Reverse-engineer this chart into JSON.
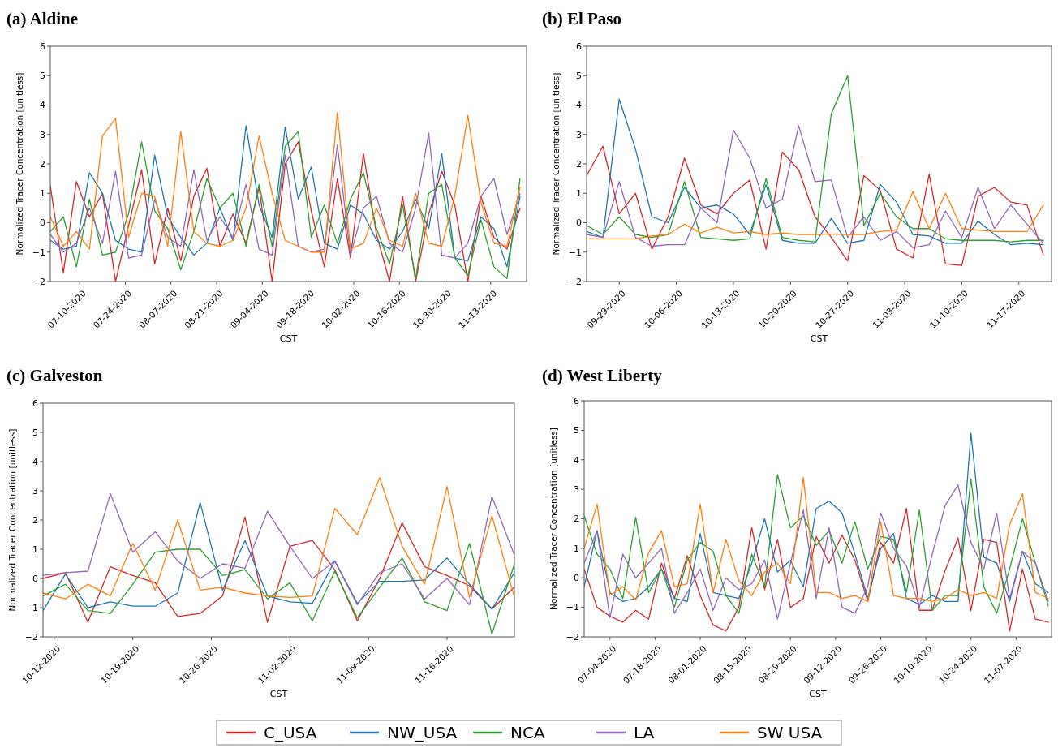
{
  "chart_data": [
    {
      "type": "line",
      "title": "(a) Aldine",
      "xlabel": "CST",
      "ylabel": "Normalized Tracer Concentration [unitless]",
      "x": [
        "2020-07-01",
        "2020-07-05",
        "2020-07-09",
        "2020-07-13",
        "2020-07-17",
        "2020-07-21",
        "2020-07-25",
        "2020-07-29",
        "2020-08-02",
        "2020-08-06",
        "2020-08-10",
        "2020-08-14",
        "2020-08-18",
        "2020-08-22",
        "2020-08-26",
        "2020-08-30",
        "2020-09-03",
        "2020-09-07",
        "2020-09-11",
        "2020-09-15",
        "2020-09-19",
        "2020-09-23",
        "2020-09-27",
        "2020-10-01",
        "2020-10-05",
        "2020-10-09",
        "2020-10-13",
        "2020-10-17",
        "2020-10-21",
        "2020-10-25",
        "2020-10-29",
        "2020-11-02",
        "2020-11-06",
        "2020-11-10",
        "2020-11-14",
        "2020-11-18",
        "2020-11-22"
      ],
      "xlim": [
        "2020-07-01",
        "2020-11-24"
      ],
      "xticks": [
        {
          "value": "2020-07-10",
          "label": "07-10-2020"
        },
        {
          "value": "2020-07-24",
          "label": "07-24-2020"
        },
        {
          "value": "2020-08-07",
          "label": "08-07-2020"
        },
        {
          "value": "2020-08-21",
          "label": "08-21-2020"
        },
        {
          "value": "2020-09-04",
          "label": "09-04-2020"
        },
        {
          "value": "2020-09-18",
          "label": "09-18-2020"
        },
        {
          "value": "2020-10-02",
          "label": "10-02-2020"
        },
        {
          "value": "2020-10-16",
          "label": "10-16-2020"
        },
        {
          "value": "2020-10-30",
          "label": "10-30-2020"
        },
        {
          "value": "2020-11-13",
          "label": "11-13-2020"
        }
      ],
      "ylim": [
        -2,
        6
      ],
      "yticks": [
        -2,
        -1,
        0,
        1,
        2,
        3,
        4,
        5,
        6
      ],
      "series": [
        {
          "color": "#d62728",
          "values": [
            1.25,
            -1.7,
            1.4,
            0.2,
            1.0,
            -2.0,
            -0.1,
            1.8,
            -1.4,
            0.5,
            -1.3,
            0.9,
            1.85,
            -0.8,
            0.3,
            -0.7,
            1.2,
            -2.0,
            2.0,
            2.75,
            0.4,
            -1.5,
            1.5,
            -1.2,
            2.35,
            -0.4,
            -2.0,
            0.9,
            -2.0,
            0.3,
            1.75,
            0.6,
            -2.0,
            0.9,
            -0.5,
            -0.9,
            0.5
          ]
        },
        {
          "color": "#1f77b4",
          "values": [
            -0.6,
            -0.9,
            -0.8,
            1.7,
            1.0,
            -0.6,
            -0.9,
            -1.0,
            2.3,
            0.2,
            -0.5,
            -1.1,
            -0.7,
            0.5,
            -0.6,
            3.3,
            0.6,
            -0.5,
            3.25,
            0.8,
            1.9,
            -0.7,
            -0.9,
            0.6,
            0.3,
            -0.6,
            -0.9,
            -0.3,
            0.8,
            -0.2,
            2.35,
            -1.2,
            -1.3,
            0.2,
            -0.2,
            -1.5,
            0.9
          ]
        },
        {
          "color": "#2ca02c",
          "values": [
            -0.3,
            0.2,
            -1.5,
            0.8,
            -1.1,
            -1.0,
            0.3,
            2.75,
            0.4,
            -0.2,
            -1.6,
            -0.3,
            1.5,
            0.5,
            1.0,
            -0.8,
            1.3,
            -0.8,
            2.6,
            3.1,
            -0.5,
            0.6,
            -0.7,
            0.8,
            1.7,
            -0.2,
            -1.4,
            0.6,
            -1.9,
            1.0,
            1.3,
            -1.2,
            -1.8,
            0.1,
            -1.5,
            -1.9,
            1.5
          ]
        },
        {
          "color": "#9467bd",
          "values": [
            -0.4,
            -1.0,
            -0.7,
            0.5,
            -0.7,
            1.75,
            -1.2,
            -1.1,
            0.8,
            -0.5,
            -0.8,
            1.8,
            -0.6,
            0.2,
            -0.5,
            1.3,
            -0.9,
            -1.1,
            2.3,
            -0.8,
            -1.0,
            -0.9,
            2.65,
            -1.1,
            0.5,
            0.9,
            -0.7,
            -1.0,
            0.5,
            3.05,
            -1.1,
            -1.2,
            -0.7,
            0.9,
            1.5,
            -0.4,
            1.0
          ]
        },
        {
          "color": "#ff7f0e",
          "values": [
            0.2,
            -0.8,
            -0.3,
            -0.9,
            2.95,
            3.55,
            -0.5,
            1.0,
            0.9,
            -0.8,
            3.1,
            -0.3,
            -0.7,
            -0.8,
            -0.6,
            0.5,
            2.95,
            1.0,
            -0.6,
            -0.8,
            -1.0,
            -1.0,
            3.75,
            -0.9,
            -0.7,
            0.5,
            -0.6,
            -0.8,
            1.0,
            -0.7,
            -0.8,
            0.9,
            3.65,
            0.7,
            -0.7,
            -0.8,
            1.2
          ]
        }
      ]
    },
    {
      "type": "line",
      "title": "(b) El Paso",
      "xlabel": "CST",
      "ylabel": "Normalized Tracer Concentration [unitless]",
      "x": [
        "2020-09-25",
        "2020-09-27",
        "2020-09-29",
        "2020-10-01",
        "2020-10-03",
        "2020-10-05",
        "2020-10-07",
        "2020-10-09",
        "2020-10-11",
        "2020-10-13",
        "2020-10-15",
        "2020-10-17",
        "2020-10-19",
        "2020-10-21",
        "2020-10-23",
        "2020-10-25",
        "2020-10-27",
        "2020-10-29",
        "2020-10-31",
        "2020-11-02",
        "2020-11-04",
        "2020-11-06",
        "2020-11-08",
        "2020-11-10",
        "2020-11-12",
        "2020-11-14",
        "2020-11-16",
        "2020-11-18",
        "2020-11-20"
      ],
      "xlim": [
        "2020-09-25",
        "2020-11-21"
      ],
      "xticks": [
        {
          "value": "2020-09-29",
          "label": "09-29-2020"
        },
        {
          "value": "2020-10-06",
          "label": "10-06-2020"
        },
        {
          "value": "2020-10-13",
          "label": "10-13-2020"
        },
        {
          "value": "2020-10-20",
          "label": "10-20-2020"
        },
        {
          "value": "2020-10-27",
          "label": "10-27-2020"
        },
        {
          "value": "2020-11-03",
          "label": "11-03-2020"
        },
        {
          "value": "2020-11-10",
          "label": "11-10-2020"
        },
        {
          "value": "2020-11-17",
          "label": "11-17-2020"
        }
      ],
      "ylim": [
        -2,
        6
      ],
      "yticks": [
        -2,
        -1,
        0,
        1,
        2,
        3,
        4,
        5,
        6
      ],
      "series": [
        {
          "color": "#d62728",
          "values": [
            1.6,
            2.6,
            0.3,
            1.0,
            -0.9,
            0.2,
            2.2,
            0.6,
            0.3,
            1.0,
            1.45,
            -0.9,
            2.4,
            1.8,
            0.2,
            -0.5,
            -1.3,
            1.6,
            1.1,
            -0.9,
            -1.2,
            1.65,
            -1.4,
            -1.45,
            0.9,
            1.2,
            0.7,
            0.6,
            -1.1
          ]
        },
        {
          "color": "#1f77b4",
          "values": [
            -0.3,
            -0.5,
            4.2,
            2.5,
            0.2,
            0.0,
            1.2,
            0.5,
            0.6,
            0.3,
            -0.4,
            1.3,
            -0.6,
            -0.7,
            -0.7,
            0.15,
            -0.7,
            -0.6,
            1.3,
            0.7,
            -0.4,
            -0.45,
            -0.7,
            -0.7,
            0.05,
            -0.4,
            -0.75,
            -0.7,
            -0.75
          ]
        },
        {
          "color": "#2ca02c",
          "values": [
            -0.1,
            -0.4,
            0.2,
            -0.4,
            -0.5,
            -0.4,
            1.4,
            -0.5,
            -0.55,
            -0.6,
            -0.55,
            1.5,
            -0.5,
            -0.6,
            -0.65,
            3.7,
            5.0,
            -0.1,
            1.0,
            0.2,
            -0.2,
            -0.2,
            -0.55,
            -0.6,
            -0.6,
            -0.6,
            -0.65,
            -0.6,
            -0.6
          ]
        },
        {
          "color": "#9467bd",
          "values": [
            -0.4,
            -0.5,
            1.4,
            -0.5,
            -0.8,
            -0.75,
            -0.75,
            0.5,
            0.0,
            3.15,
            2.2,
            0.5,
            0.8,
            3.3,
            1.4,
            1.45,
            -0.5,
            0.2,
            -0.6,
            -0.3,
            -0.85,
            -0.75,
            0.4,
            -0.5,
            1.2,
            -0.2,
            0.6,
            -0.05,
            -0.7
          ]
        },
        {
          "color": "#ff7f0e",
          "values": [
            -0.55,
            -0.55,
            -0.55,
            -0.55,
            -0.45,
            -0.4,
            -0.05,
            -0.35,
            -0.15,
            -0.35,
            -0.3,
            -0.4,
            -0.35,
            -0.4,
            -0.4,
            -0.38,
            -0.4,
            -0.4,
            -0.3,
            -0.25,
            1.05,
            -0.2,
            1.0,
            -0.2,
            -0.25,
            -0.3,
            -0.3,
            -0.3,
            0.6
          ]
        }
      ]
    },
    {
      "type": "line",
      "title": "(c) Galveston",
      "xlabel": "CST",
      "ylabel": "Normalized Tracer Concentration [unitless]",
      "x": [
        "2020-10-11",
        "2020-10-13",
        "2020-10-15",
        "2020-10-17",
        "2020-10-19",
        "2020-10-21",
        "2020-10-23",
        "2020-10-25",
        "2020-10-27",
        "2020-10-29",
        "2020-10-31",
        "2020-11-02",
        "2020-11-04",
        "2020-11-06",
        "2020-11-08",
        "2020-11-10",
        "2020-11-12",
        "2020-11-14",
        "2020-11-16",
        "2020-11-18",
        "2020-11-20",
        "2020-11-22"
      ],
      "xlim": [
        "2020-10-11",
        "2020-11-22"
      ],
      "xticks": [
        {
          "value": "2020-10-12",
          "label": "10-12-2020"
        },
        {
          "value": "2020-10-19",
          "label": "10-19-2020"
        },
        {
          "value": "2020-10-26",
          "label": "10-26-2020"
        },
        {
          "value": "2020-11-02",
          "label": "11-02-2020"
        },
        {
          "value": "2020-11-09",
          "label": "11-09-2020"
        },
        {
          "value": "2020-11-16",
          "label": "11-16-2020"
        }
      ],
      "ylim": [
        -2,
        6
      ],
      "yticks": [
        -2,
        -1,
        0,
        1,
        2,
        3,
        4,
        5,
        6
      ],
      "series": [
        {
          "color": "#d62728",
          "values": [
            0.0,
            0.2,
            -1.5,
            0.4,
            0.1,
            -0.15,
            -1.3,
            -1.2,
            -0.6,
            2.1,
            -1.5,
            1.1,
            1.3,
            0.3,
            -1.45,
            0.0,
            1.9,
            0.4,
            0.1,
            -0.25,
            -1.05,
            -0.3
          ]
        },
        {
          "color": "#1f77b4",
          "values": [
            -1.1,
            0.15,
            -1.0,
            -0.8,
            -0.95,
            -0.95,
            -0.5,
            2.6,
            -0.4,
            1.3,
            -0.6,
            -0.8,
            -0.85,
            0.6,
            -0.85,
            -0.1,
            -0.1,
            -0.05,
            0.7,
            -0.2,
            -1.05,
            0.2
          ]
        },
        {
          "color": "#2ca02c",
          "values": [
            -0.6,
            -0.2,
            -1.1,
            -1.2,
            -0.2,
            0.9,
            1.0,
            1.0,
            0.1,
            0.3,
            -0.7,
            -0.15,
            -1.45,
            0.25,
            -1.35,
            -0.3,
            0.7,
            -0.8,
            -1.1,
            1.2,
            -1.9,
            0.5
          ]
        },
        {
          "color": "#9467bd",
          "values": [
            0.1,
            0.2,
            0.25,
            2.9,
            0.9,
            1.6,
            0.6,
            0.0,
            0.5,
            0.35,
            2.3,
            1.1,
            0.0,
            0.6,
            -0.9,
            0.2,
            0.5,
            -0.7,
            0.0,
            -0.9,
            2.8,
            0.8
          ]
        },
        {
          "color": "#ff7f0e",
          "values": [
            -0.5,
            -0.7,
            -0.2,
            -0.6,
            1.2,
            -0.4,
            2.0,
            -0.4,
            -0.3,
            -0.5,
            -0.6,
            -0.65,
            -0.6,
            2.4,
            1.5,
            3.45,
            1.1,
            -0.2,
            3.15,
            -0.65,
            2.15,
            -0.65
          ]
        }
      ]
    },
    {
      "type": "line",
      "title": "(d) West Liberty",
      "xlabel": "CST",
      "ylabel": "Normalized Tracer Concentration [unitless]",
      "legend": "bottom",
      "x": [
        "2020-06-26",
        "2020-06-30",
        "2020-07-04",
        "2020-07-08",
        "2020-07-12",
        "2020-07-16",
        "2020-07-20",
        "2020-07-24",
        "2020-07-28",
        "2020-08-01",
        "2020-08-05",
        "2020-08-09",
        "2020-08-13",
        "2020-08-17",
        "2020-08-21",
        "2020-08-25",
        "2020-08-29",
        "2020-09-02",
        "2020-09-06",
        "2020-09-10",
        "2020-09-14",
        "2020-09-18",
        "2020-09-22",
        "2020-09-26",
        "2020-09-30",
        "2020-10-04",
        "2020-10-08",
        "2020-10-12",
        "2020-10-16",
        "2020-10-20",
        "2020-10-24",
        "2020-10-28",
        "2020-11-01",
        "2020-11-05",
        "2020-11-09",
        "2020-11-13",
        "2020-11-17"
      ],
      "xlim": [
        "2020-06-26",
        "2020-11-18"
      ],
      "xticks": [
        {
          "value": "2020-07-04",
          "label": "07-04-2020"
        },
        {
          "value": "2020-07-18",
          "label": "07-18-2020"
        },
        {
          "value": "2020-08-01",
          "label": "08-01-2020"
        },
        {
          "value": "2020-08-15",
          "label": "08-15-2020"
        },
        {
          "value": "2020-08-29",
          "label": "08-29-2020"
        },
        {
          "value": "2020-09-12",
          "label": "09-12-2020"
        },
        {
          "value": "2020-09-26",
          "label": "09-26-2020"
        },
        {
          "value": "2020-10-10",
          "label": "10-10-2020"
        },
        {
          "value": "2020-10-24",
          "label": "10-24-2020"
        },
        {
          "value": "2020-11-07",
          "label": "11-07-2020"
        }
      ],
      "ylim": [
        -2,
        6
      ],
      "yticks": [
        -2,
        -1,
        0,
        1,
        2,
        3,
        4,
        5,
        6
      ],
      "series": [
        {
          "name": "C_USA",
          "color": "#d62728",
          "values": [
            0.3,
            -1.0,
            -1.3,
            -1.5,
            -1.1,
            -1.4,
            0.5,
            -0.7,
            0.75,
            -0.6,
            -1.6,
            -1.8,
            -1.0,
            1.7,
            -0.4,
            1.3,
            -1.0,
            -0.7,
            1.4,
            0.5,
            1.45,
            0.6,
            -0.8,
            1.2,
            0.5,
            2.35,
            -1.1,
            -1.1,
            0.25,
            1.35,
            -1.1,
            1.3,
            1.2,
            -1.8,
            0.3,
            -1.4,
            -1.5
          ]
        },
        {
          "name": "NW_USA",
          "color": "#1f77b4",
          "values": [
            -0.3,
            1.6,
            -0.5,
            -0.8,
            -0.7,
            -0.3,
            0.3,
            -0.7,
            -0.8,
            1.5,
            -0.5,
            -0.6,
            -0.7,
            0.5,
            2.0,
            0.2,
            0.6,
            -0.3,
            2.35,
            2.6,
            2.2,
            0.8,
            -0.7,
            1.0,
            1.5,
            -0.7,
            -0.9,
            -0.6,
            -0.8,
            -0.8,
            4.9,
            0.7,
            0.5,
            -0.8,
            0.9,
            -0.2,
            -0.5
          ]
        },
        {
          "name": "NCA",
          "color": "#2ca02c",
          "values": [
            2.1,
            0.8,
            0.3,
            -0.7,
            2.05,
            -0.5,
            0.3,
            -1.0,
            0.6,
            1.2,
            0.9,
            -0.6,
            -1.2,
            0.8,
            -0.3,
            3.5,
            1.7,
            2.1,
            1.1,
            1.6,
            0.5,
            1.9,
            0.3,
            1.4,
            1.3,
            -0.5,
            2.3,
            -1.1,
            -0.6,
            -0.6,
            3.35,
            -0.3,
            -1.2,
            0.3,
            2.0,
            0.5,
            -0.95
          ]
        },
        {
          "name": "LA",
          "color": "#9467bd",
          "values": [
            0.5,
            1.6,
            -1.35,
            0.8,
            0.0,
            0.5,
            1.0,
            -1.2,
            -0.5,
            0.3,
            -1.1,
            0.0,
            -0.4,
            -0.2,
            0.6,
            -1.4,
            0.5,
            2.3,
            -0.7,
            1.7,
            -1.0,
            -1.2,
            -0.3,
            2.2,
            1.0,
            0.4,
            -1.0,
            0.8,
            2.45,
            3.15,
            1.2,
            0.3,
            2.2,
            -0.7,
            0.9,
            0.5,
            -0.8
          ]
        },
        {
          "name": "SW USA",
          "color": "#ff7f0e",
          "values": [
            1.0,
            2.5,
            -0.6,
            -0.3,
            -0.75,
            0.85,
            1.6,
            -0.3,
            -0.2,
            2.5,
            -0.5,
            1.3,
            -0.1,
            -0.6,
            0.2,
            0.5,
            -0.2,
            3.4,
            -0.5,
            -0.5,
            -0.7,
            -0.6,
            -0.8,
            1.9,
            -0.6,
            -0.7,
            -0.7,
            -0.8,
            -0.7,
            -0.4,
            -0.6,
            -0.5,
            -0.7,
            1.8,
            2.85,
            -0.5,
            -0.7
          ]
        }
      ]
    }
  ]
}
